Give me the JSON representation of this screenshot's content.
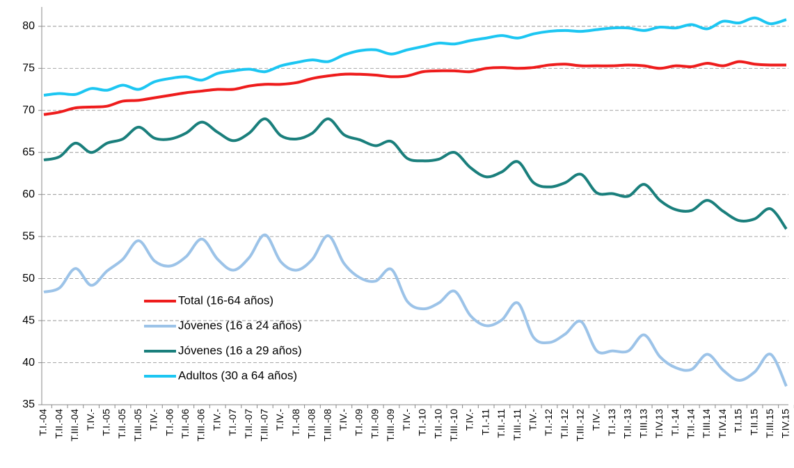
{
  "chart_data": {
    "type": "line",
    "categories": [
      "T.I.-04",
      "T.II.-04",
      "T.III.-04",
      "T.IV.-",
      "T.I.-05",
      "T.II.-05",
      "T.III.-05",
      "T.IV.-",
      "T.I.-06",
      "T.II.-06",
      "T.III.-06",
      "T.IV.-",
      "T.I.-07",
      "T.II.-07",
      "T.III.-07",
      "T.IV.-",
      "T.I.-08",
      "T.II.-08",
      "T.III.-08",
      "T.IV.-",
      "T.I.-09",
      "T.II.-09",
      "T.III.-09",
      "T.IV.-",
      "T.I.-10",
      "T.II.-10",
      "T.III.-10",
      "T.IV.-",
      "T.I.-11",
      "T.II.-11",
      "T.III.-11",
      "T.IV.-",
      "T.I.-12",
      "T.II.-12",
      "T.III.-12",
      "T.IV.-",
      "T.I.-13",
      "T.II.-13",
      "T.III.13",
      "T.IV.13",
      "T.I.-14",
      "T.II.-14",
      "T.III.14",
      "T.IV.14",
      "T.I.15",
      "T.II.15",
      "T.III.15",
      "T.IV.15"
    ],
    "series": [
      {
        "name": "Total (16-64 años)",
        "color": "#ee1c1c",
        "values": [
          69.5,
          69.8,
          70.3,
          70.4,
          70.5,
          71.1,
          71.2,
          71.5,
          71.8,
          72.1,
          72.3,
          72.5,
          72.5,
          72.9,
          73.1,
          73.1,
          73.3,
          73.8,
          74.1,
          74.3,
          74.3,
          74.2,
          74.0,
          74.1,
          74.6,
          74.7,
          74.7,
          74.6,
          75.0,
          75.1,
          75.0,
          75.1,
          75.4,
          75.5,
          75.3,
          75.3,
          75.3,
          75.4,
          75.3,
          75.0,
          75.3,
          75.2,
          75.6,
          75.3,
          75.8,
          75.5,
          75.4,
          75.4
        ]
      },
      {
        "name": "Jóvenes (16 a 24 años)",
        "color": "#9cc3e8",
        "values": [
          48.4,
          48.9,
          51.2,
          49.2,
          50.9,
          52.3,
          54.5,
          52.1,
          51.5,
          52.6,
          54.7,
          52.3,
          51.0,
          52.5,
          55.2,
          52.0,
          51.0,
          52.3,
          55.1,
          51.8,
          50.1,
          49.7,
          51.1,
          47.3,
          46.4,
          47.1,
          48.5,
          45.6,
          44.4,
          45.1,
          47.1,
          43.0,
          42.4,
          43.4,
          44.9,
          41.4,
          41.4,
          41.4,
          43.3,
          40.7,
          39.4,
          39.2,
          41.0,
          39.1,
          37.9,
          38.9,
          41.0,
          37.2
        ]
      },
      {
        "name": "Jóvenes (16 a 29 años)",
        "color": "#1a7f7c",
        "values": [
          64.1,
          64.5,
          66.1,
          65.0,
          66.1,
          66.6,
          68.0,
          66.7,
          66.6,
          67.3,
          68.6,
          67.4,
          66.4,
          67.3,
          69.0,
          67.0,
          66.6,
          67.3,
          69.0,
          67.1,
          66.5,
          65.8,
          66.3,
          64.3,
          64.0,
          64.2,
          65.0,
          63.2,
          62.1,
          62.7,
          63.9,
          61.4,
          60.9,
          61.4,
          62.4,
          60.2,
          60.1,
          59.8,
          61.2,
          59.3,
          58.2,
          58.1,
          59.3,
          58.0,
          56.9,
          57.1,
          58.3,
          55.9
        ]
      },
      {
        "name": "Adultos (30 a 64 años)",
        "color": "#1cc6f2",
        "values": [
          71.8,
          72.0,
          71.9,
          72.6,
          72.4,
          73.0,
          72.5,
          73.4,
          73.8,
          74.0,
          73.6,
          74.4,
          74.7,
          74.9,
          74.6,
          75.3,
          75.7,
          76.0,
          75.8,
          76.6,
          77.1,
          77.2,
          76.7,
          77.2,
          77.6,
          78.0,
          77.9,
          78.3,
          78.6,
          78.9,
          78.6,
          79.1,
          79.4,
          79.5,
          79.4,
          79.6,
          79.8,
          79.8,
          79.5,
          79.9,
          79.8,
          80.2,
          79.7,
          80.6,
          80.4,
          81.0,
          80.3,
          80.8
        ]
      }
    ],
    "ylim": [
      35,
      82.3
    ],
    "yticks": [
      35,
      40,
      45,
      50,
      55,
      60,
      65,
      70,
      75,
      80
    ],
    "grid": true,
    "legend": "lower-left"
  }
}
